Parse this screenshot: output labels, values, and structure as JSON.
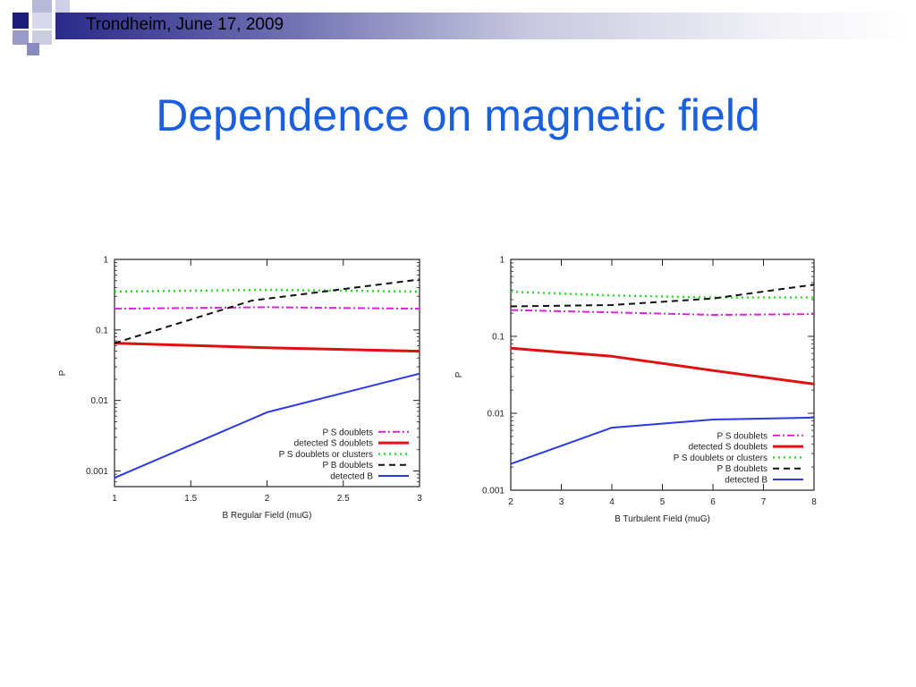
{
  "header": {
    "text": "Trondheim, June 17, 2009"
  },
  "title": "Dependence on magnetic field",
  "colors": {
    "title": "#1a5fe0",
    "p_s_doublets": "#e020e0",
    "detected_s_doublets": "#e01010",
    "p_s_doublets_or_clusters": "#22dd22",
    "p_b_doublets": "#111111",
    "detected_b": "#2a3ae8"
  },
  "chart_data": [
    {
      "type": "line",
      "xlabel": "B Regular Field (muG)",
      "ylabel": "P",
      "xlim": [
        1,
        3
      ],
      "ylim": [
        0.0006,
        1
      ],
      "yscale": "log",
      "xticks": [
        1,
        1.5,
        2,
        2.5,
        3
      ],
      "xtick_labels": [
        "1",
        "1.5",
        "2",
        "2.5",
        "3"
      ],
      "yticks": [
        0.001,
        0.01,
        0.1,
        1
      ],
      "ytick_labels": [
        "0.001",
        "0.01",
        "0.1",
        "1"
      ],
      "legend_position": "bottom-right",
      "series": [
        {
          "name": "P S doublets",
          "style": "dashdot",
          "color": "#e020e0",
          "x": [
            1,
            2,
            3
          ],
          "y": [
            0.2,
            0.21,
            0.2
          ]
        },
        {
          "name": "detected S doublets",
          "style": "solid-thick",
          "color": "#e01010",
          "x": [
            1,
            2,
            3
          ],
          "y": [
            0.065,
            0.056,
            0.05
          ]
        },
        {
          "name": "P S doublets or clusters",
          "style": "dotted",
          "color": "#22dd22",
          "x": [
            1,
            2,
            3
          ],
          "y": [
            0.35,
            0.37,
            0.35
          ]
        },
        {
          "name": "P B doublets",
          "style": "dashed",
          "color": "#111111",
          "x": [
            1,
            1.9,
            3
          ],
          "y": [
            0.065,
            0.26,
            0.52
          ]
        },
        {
          "name": "detected B",
          "style": "solid",
          "color": "#2a3ae8",
          "x": [
            1,
            2,
            3
          ],
          "y": [
            0.0008,
            0.0068,
            0.024
          ]
        }
      ]
    },
    {
      "type": "line",
      "xlabel": "B Turbulent Field (muG)",
      "ylabel": "P",
      "xlim": [
        2,
        8
      ],
      "ylim": [
        0.001,
        1
      ],
      "yscale": "log",
      "xticks": [
        2,
        3,
        4,
        5,
        6,
        7,
        8
      ],
      "xtick_labels": [
        "2",
        "3",
        "4",
        "5",
        "6",
        "7",
        "8"
      ],
      "yticks": [
        0.001,
        0.01,
        0.1,
        1
      ],
      "ytick_labels": [
        "0.001",
        "0.01",
        "0.1",
        "1"
      ],
      "legend_position": "bottom-right",
      "series": [
        {
          "name": "P S doublets",
          "style": "dashdot",
          "color": "#e020e0",
          "x": [
            2,
            4,
            6,
            8
          ],
          "y": [
            0.22,
            0.205,
            0.19,
            0.195
          ]
        },
        {
          "name": "detected S doublets",
          "style": "solid-thick",
          "color": "#e01010",
          "x": [
            2,
            4,
            6,
            8
          ],
          "y": [
            0.07,
            0.055,
            0.036,
            0.024
          ]
        },
        {
          "name": "P S doublets or clusters",
          "style": "dotted",
          "color": "#22dd22",
          "x": [
            2,
            4,
            6,
            8
          ],
          "y": [
            0.38,
            0.34,
            0.32,
            0.32
          ]
        },
        {
          "name": "P B doublets",
          "style": "dashed",
          "color": "#111111",
          "x": [
            2,
            4,
            6,
            8
          ],
          "y": [
            0.245,
            0.255,
            0.31,
            0.47
          ]
        },
        {
          "name": "detected B",
          "style": "solid",
          "color": "#2a3ae8",
          "x": [
            2,
            4,
            6,
            8
          ],
          "y": [
            0.0022,
            0.0065,
            0.0083,
            0.0088
          ]
        }
      ]
    }
  ]
}
